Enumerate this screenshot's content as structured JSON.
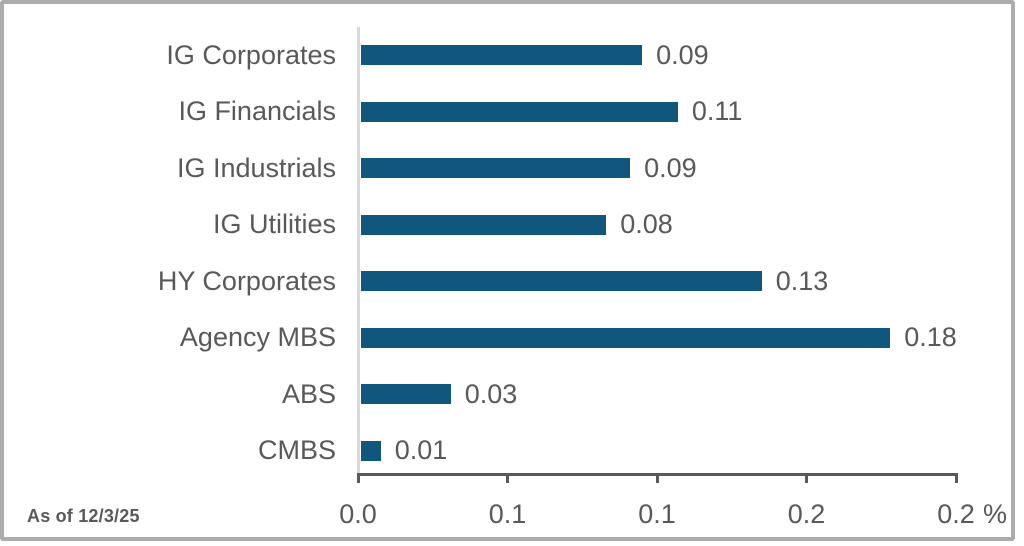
{
  "page": {
    "background": "#ffffff",
    "frame_border_color": "#acacac"
  },
  "chart_data": {
    "type": "bar",
    "orientation": "horizontal",
    "title": "",
    "categories": [
      "IG Corporates",
      "IG Financials",
      "IG Industrials",
      "IG Utilities",
      "HY Corporates",
      "Agency MBS",
      "ABS",
      "CMBS"
    ],
    "values": [
      0.09,
      0.11,
      0.09,
      0.08,
      0.13,
      0.18,
      0.03,
      0.01
    ],
    "values_precise": [
      0.094,
      0.106,
      0.09,
      0.082,
      0.134,
      0.177,
      0.03,
      0.0066
    ],
    "value_labels": [
      "0.09",
      "0.11",
      "0.09",
      "0.08",
      "0.13",
      "0.18",
      "0.03",
      "0.01"
    ],
    "bar_color": "#10567d",
    "text_color": "#595959",
    "axis_line_color": "#595959",
    "zero_line_color": "#d9d9d9",
    "x_axis": {
      "tick_labels": [
        "0.0",
        "0.1",
        "0.1",
        "0.2",
        "0.2"
      ],
      "tick_values": [
        0,
        0.05,
        0.1,
        0.15,
        0.2
      ],
      "unit_label": "%",
      "range": [
        0,
        0.2
      ]
    },
    "ylabel": "",
    "xlabel": "%",
    "legend": "none",
    "grid": "off"
  },
  "footer": {
    "as_of": "As of 12/3/25"
  }
}
